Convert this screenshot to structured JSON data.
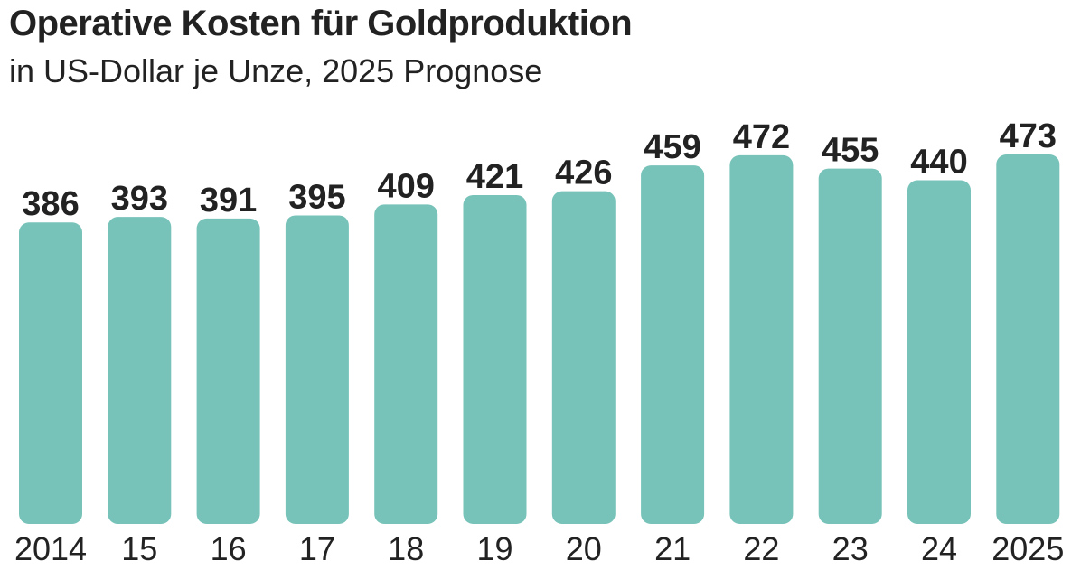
{
  "chart_data": {
    "type": "bar",
    "title": "Operative Kosten für Goldproduktion",
    "subtitle": "in US-Dollar je Unze, 2025 Prognose",
    "categories": [
      "2014",
      "15",
      "16",
      "17",
      "18",
      "19",
      "20",
      "21",
      "22",
      "23",
      "24",
      "2025"
    ],
    "values": [
      386,
      393,
      391,
      395,
      409,
      421,
      426,
      459,
      472,
      455,
      440,
      473
    ],
    "xlabel": "",
    "ylabel": "",
    "ylim": [
      0,
      473
    ],
    "grid": false,
    "bar_color": "#77c3b9"
  }
}
